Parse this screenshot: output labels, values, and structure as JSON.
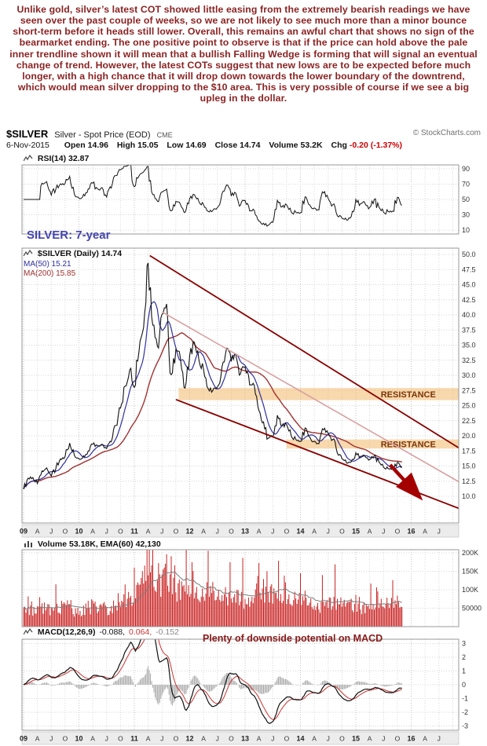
{
  "commentary": {
    "text": "Unlike gold, silver’s latest COT showed little easing from the extremely bearish readings we have seen over the past couple of weeks, so we are not likely to see much more than a minor bounce short-term before it heads still lower. Overall, this remains an awful chart that shows no sign of the bearmarket ending. The one positive point to observe is that if the price can hold above the pale inner trendline shown it will mean that a bullish Falling Wedge is forming that will signal an eventual change of trend. However, the latest COTs suggest that new lows are to be expected before much longer, with a high chance that it will drop down towards the lower boundary of the downtrend, which would mean silver dropping to the $10 area. This is very possible of course if we see a big upleg in the dollar."
  },
  "header": {
    "symbol": "$SILVER",
    "description": "Silver - Spot Price (EOD)",
    "exchange": "CME",
    "copyright": "© StockCharts.com",
    "date": "6-Nov-2015",
    "quote_items": [
      {
        "label": "Open",
        "value": "14.96"
      },
      {
        "label": "High",
        "value": "15.05"
      },
      {
        "label": "Low",
        "value": "14.69"
      },
      {
        "label": "Close",
        "value": "14.74"
      },
      {
        "label": "Volume",
        "value": "53.2K"
      },
      {
        "label": "Chg",
        "value": "-0.20 (-1.37%)"
      }
    ]
  },
  "labels": {
    "rsi_legend": "RSI(14) 32.87",
    "period_label": "SILVER: 7-year",
    "main_legend": "$SILVER (Daily) 14.74",
    "ma50_legend": "MA(50) 15.21",
    "ma200_legend": "MA(200) 15.85",
    "volume_legend": "Volume 53.18K, EMA(60) 42,130",
    "macd_label": "MACD(12,26,9)",
    "macd_values": [
      "-0.088,",
      "0.064,",
      "-0.152"
    ],
    "macd_annotation": "Plenty of downside potential on MACD",
    "resistance": "RESISTANCE"
  },
  "chart_data": {
    "type": "line",
    "title": "$SILVER Silver - Spot Price (EOD) CME",
    "x_start": 2009.0,
    "x_step_months": 1,
    "x_range": [
      2009.0,
      2016.86
    ],
    "x_year_labels": [
      "09",
      "10",
      "11",
      "12",
      "13",
      "14",
      "15",
      "16"
    ],
    "x_quarter_labels": [
      "A",
      "J",
      "O"
    ],
    "panels": {
      "rsi": {
        "name": "RSI(14)",
        "last": 32.87,
        "ticks": [
          90,
          70,
          50,
          30,
          10
        ],
        "range": [
          5,
          95
        ]
      },
      "price": {
        "name": "$SILVER (Daily)",
        "last": 14.74,
        "ma50": 15.21,
        "ma200": 15.85,
        "ticks": [
          50,
          47.5,
          45,
          42.5,
          40,
          37.5,
          35,
          32.5,
          30,
          27.5,
          25,
          22.5,
          20,
          17.5,
          15,
          12.5,
          10
        ],
        "range": [
          5.6,
          51.0
        ],
        "monthly_close": [
          11.2,
          13.0,
          13.1,
          12.1,
          14.2,
          14.7,
          13.3,
          14.6,
          16.2,
          16.6,
          18.8,
          16.8,
          16.2,
          16.7,
          17.5,
          18.6,
          18.4,
          18.6,
          17.9,
          19.0,
          21.7,
          24.6,
          28.2,
          30.9,
          28.0,
          33.9,
          37.9,
          48.6,
          38.3,
          34.8,
          40.1,
          41.8,
          30.1,
          34.3,
          32.8,
          27.9,
          33.3,
          35.5,
          32.5,
          31.0,
          27.8,
          27.5,
          28.1,
          31.4,
          34.5,
          32.3,
          33.4,
          30.2,
          31.4,
          28.4,
          28.3,
          24.2,
          22.3,
          19.6,
          19.8,
          23.4,
          21.7,
          21.9,
          20.0,
          19.4,
          19.1,
          21.3,
          19.8,
          19.1,
          18.7,
          21.0,
          20.4,
          19.4,
          17.1,
          16.2,
          15.5,
          15.7,
          17.2,
          16.6,
          16.6,
          16.1,
          16.7,
          15.7,
          14.8,
          14.6,
          14.5,
          15.6,
          14.74
        ]
      },
      "volume": {
        "last": "53.18K",
        "ema60": 42130,
        "ticks_k": [
          200,
          150,
          100,
          50
        ],
        "tick_labels": [
          "200K",
          "150K",
          "100K",
          "50000"
        ],
        "monthly_k": [
          46,
          50,
          48,
          42,
          55,
          47,
          41,
          46,
          52,
          49,
          58,
          44,
          46,
          44,
          50,
          56,
          48,
          52,
          45,
          50,
          62,
          70,
          85,
          78,
          82,
          95,
          112,
          215,
          170,
          120,
          132,
          150,
          142,
          112,
          100,
          95,
          92,
          85,
          80,
          76,
          88,
          72,
          70,
          78,
          86,
          72,
          74,
          68,
          72,
          66,
          74,
          132,
          96,
          112,
          86,
          76,
          72,
          68,
          66,
          72,
          62,
          58,
          56,
          52,
          50,
          64,
          58,
          55,
          72,
          66,
          60,
          58,
          64,
          56,
          50,
          48,
          52,
          56,
          60,
          58,
          54,
          50,
          53
        ]
      },
      "macd": {
        "params": "12,26,9",
        "values": [
          -0.088,
          0.064,
          -0.152
        ],
        "ticks": [
          3,
          2,
          1,
          0,
          -1,
          -2,
          -3
        ],
        "range": [
          -3.3,
          3.3
        ]
      }
    },
    "annotations": {
      "trendlines": [
        {
          "name": "upper-channel-trendline",
          "color": "#8b0000",
          "width": 1.8,
          "from": [
            2011.28,
            49.8
          ],
          "to": [
            2016.86,
            18.0
          ]
        },
        {
          "name": "pale-inner-trendline",
          "color": "#d8a0a0",
          "width": 1.6,
          "from": [
            2011.5,
            40.5
          ],
          "to": [
            2016.86,
            12.4
          ]
        },
        {
          "name": "lower-channel-trendline",
          "color": "#8b0000",
          "width": 1.8,
          "from": [
            2011.75,
            26.0
          ],
          "to": [
            2016.86,
            8.0
          ]
        }
      ],
      "bands": [
        {
          "name": "resistance-band-upper",
          "from_x": 2011.8,
          "y_low": 25.9,
          "y_high": 27.9,
          "label": "RESISTANCE",
          "label_x": 2015.45,
          "color": "#f2b25c",
          "opacity": 0.5
        },
        {
          "name": "resistance-band-lower",
          "from_x": 2013.75,
          "y_low": 17.9,
          "y_high": 19.4,
          "label": "RESISTANCE",
          "label_x": 2015.45,
          "color": "#f2b25c",
          "opacity": 0.5
        }
      ],
      "arrow": {
        "from": [
          2015.62,
          15.2
        ],
        "to": [
          2016.08,
          10.6
        ],
        "color": "#a40000"
      }
    }
  }
}
